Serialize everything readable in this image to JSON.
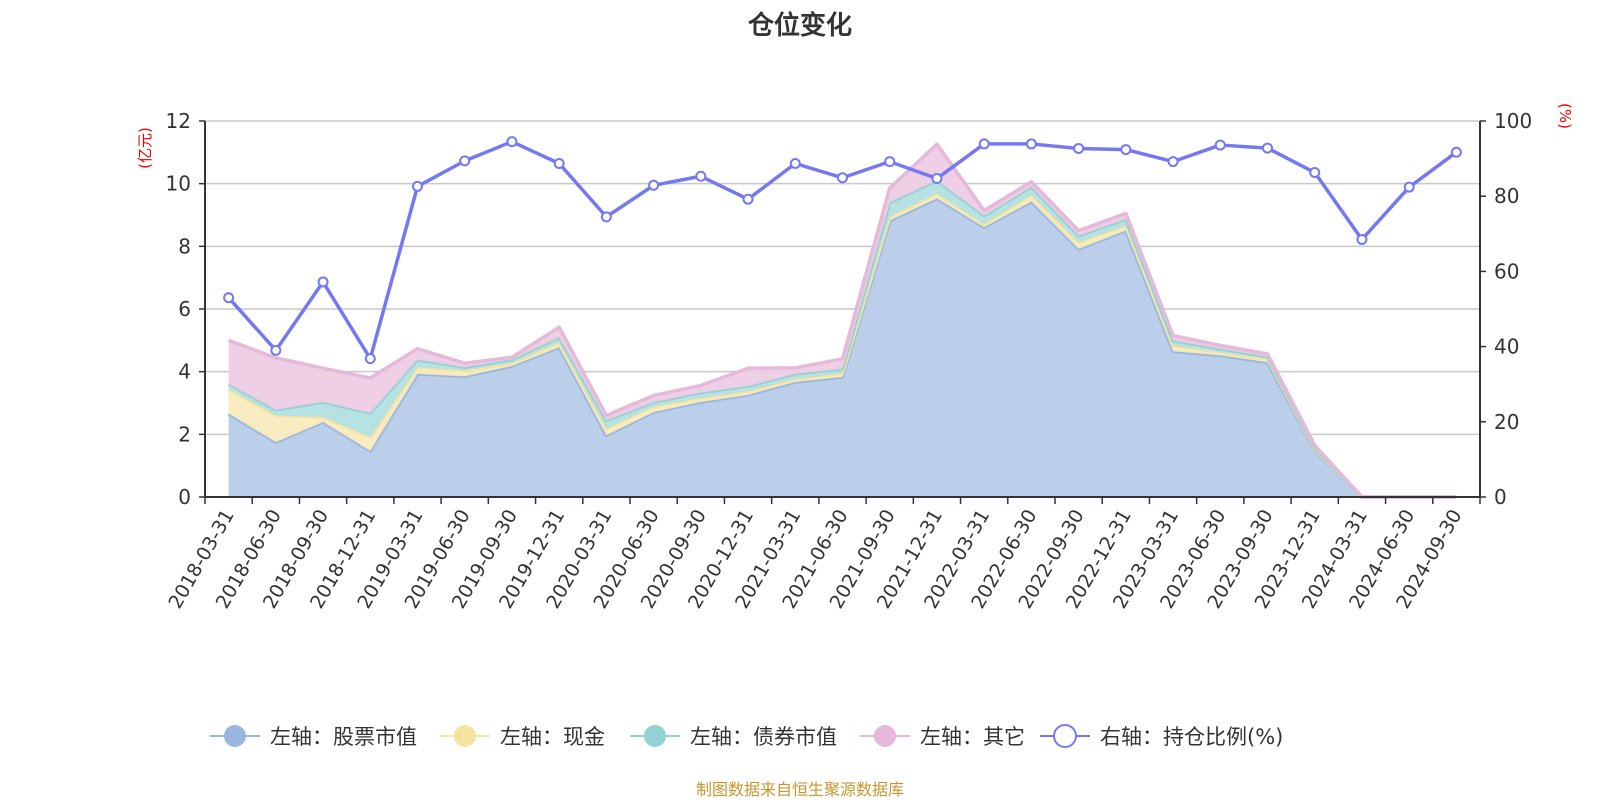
{
  "chart_data": {
    "type": "area",
    "stacked": true,
    "title": "仓位变化",
    "left_axis_unit": "(亿元)",
    "right_axis_unit": "(%)",
    "left_ylim": [
      0,
      12
    ],
    "left_yticks": [
      0,
      2,
      4,
      6,
      8,
      10,
      12
    ],
    "right_ylim": [
      0,
      100
    ],
    "right_yticks": [
      0,
      20,
      40,
      60,
      80,
      100
    ],
    "grid": true,
    "legend_position": "bottom",
    "categories": [
      "2018-03-31",
      "2018-06-30",
      "2018-09-30",
      "2018-12-31",
      "2019-03-31",
      "2019-06-30",
      "2019-09-30",
      "2019-12-31",
      "2020-03-31",
      "2020-06-30",
      "2020-09-30",
      "2020-12-31",
      "2021-03-31",
      "2021-06-30",
      "2021-09-30",
      "2021-12-31",
      "2022-03-31",
      "2022-06-30",
      "2022-09-30",
      "2022-12-31",
      "2023-03-31",
      "2023-06-30",
      "2023-09-30",
      "2023-12-31",
      "2024-03-31",
      "2024-06-30",
      "2024-09-30"
    ],
    "series": [
      {
        "name": "左轴：股票市值",
        "axis": "left",
        "type": "area",
        "color": "#9ab6e0",
        "fill": "#b8cce9",
        "values": [
          2.66,
          1.75,
          2.39,
          1.47,
          3.93,
          3.85,
          4.18,
          4.78,
          1.97,
          2.71,
          3.03,
          3.26,
          3.67,
          3.83,
          8.82,
          9.53,
          8.61,
          9.43,
          7.92,
          8.5,
          4.65,
          4.52,
          4.3,
          1.49,
          0,
          0,
          0
        ]
      },
      {
        "name": "左轴：现金",
        "axis": "left",
        "type": "area",
        "color": "#f5e3a0",
        "fill": "#f8ebbd",
        "values": [
          0.79,
          0.85,
          0.16,
          0.44,
          0.21,
          0.19,
          0.1,
          0.16,
          0.21,
          0.18,
          0.13,
          0.12,
          0.1,
          0.12,
          0.13,
          0.16,
          0.1,
          0.21,
          0.21,
          0.16,
          0.18,
          0.1,
          0.11,
          0.05,
          0,
          0,
          0
        ]
      },
      {
        "name": "左轴：债券市值",
        "axis": "left",
        "type": "area",
        "color": "#93d2d3",
        "fill": "#b3e0e1",
        "values": [
          0.16,
          0.18,
          0.48,
          0.77,
          0.24,
          0.1,
          0.11,
          0.16,
          0.26,
          0.14,
          0.17,
          0.16,
          0.16,
          0.14,
          0.45,
          0.41,
          0.27,
          0.26,
          0.21,
          0.21,
          0.16,
          0.11,
          0.07,
          0.05,
          0,
          0,
          0
        ]
      },
      {
        "name": "左轴：其它",
        "axis": "left",
        "type": "area",
        "color": "#e6b8da",
        "fill": "#edcce4",
        "values": [
          1.39,
          1.66,
          1.08,
          1.12,
          0.35,
          0.13,
          0.07,
          0.32,
          0.16,
          0.21,
          0.23,
          0.57,
          0.19,
          0.32,
          0.46,
          1.16,
          0.16,
          0.16,
          0.16,
          0.18,
          0.16,
          0.11,
          0.09,
          0.06,
          0,
          0,
          0
        ]
      },
      {
        "name": "右轴：持仓比例(%)",
        "axis": "right",
        "type": "line",
        "color": "#7479f2",
        "values": [
          53.0,
          39.0,
          57.2,
          36.8,
          82.6,
          89.4,
          94.5,
          88.7,
          74.5,
          82.9,
          85.3,
          79.2,
          88.7,
          84.9,
          89.2,
          84.7,
          93.9,
          93.9,
          92.7,
          92.4,
          89.2,
          93.6,
          92.8,
          86.3,
          68.5,
          82.4,
          91.7
        ]
      }
    ]
  },
  "footer": "制图数据来自恒生聚源数据库"
}
